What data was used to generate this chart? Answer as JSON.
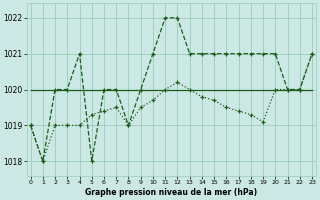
{
  "title": "Graphe pression niveau de la mer (hPa)",
  "bg_color": "#cce8e4",
  "line_color": "#1a5c1a",
  "grid_color": "#99ccbb",
  "xlim": [
    -0.3,
    23.3
  ],
  "ylim": [
    1017.6,
    1022.4
  ],
  "yticks": [
    1018,
    1019,
    1020,
    1021,
    1022
  ],
  "xticks": [
    0,
    1,
    2,
    3,
    4,
    5,
    6,
    7,
    8,
    9,
    10,
    11,
    12,
    13,
    14,
    15,
    16,
    17,
    18,
    19,
    20,
    21,
    22,
    23
  ],
  "series": [
    {
      "x": [
        0,
        1,
        2,
        3,
        4,
        5,
        6,
        7,
        8,
        9,
        10,
        11,
        12,
        13,
        14,
        15,
        16,
        17,
        18,
        19,
        20,
        21,
        22,
        23
      ],
      "y": [
        1019,
        1018,
        1020,
        1020,
        1021,
        1018,
        1020,
        1020,
        1019,
        1020,
        1021,
        1022,
        1022,
        1021,
        1021,
        1021,
        1021,
        1021,
        1021,
        1021,
        1021,
        1020,
        1020,
        1021
      ],
      "style": "--",
      "marker": "+"
    },
    {
      "x": [
        0,
        1,
        2,
        3,
        4,
        5,
        6,
        7,
        8,
        9,
        10,
        11,
        12,
        13,
        14,
        15,
        16,
        17,
        18,
        19,
        20,
        21,
        22,
        23
      ],
      "y": [
        1020,
        1020,
        1020,
        1020,
        1020,
        1020,
        1020,
        1020,
        1020,
        1020,
        1020,
        1020,
        1020,
        1020,
        1020,
        1020,
        1020,
        1020,
        1020,
        1020,
        1020,
        1020,
        1020,
        1020
      ],
      "style": "-",
      "marker": null
    },
    {
      "x": [
        0,
        1,
        2,
        3,
        4,
        5,
        6,
        7,
        8,
        9,
        10,
        11,
        12,
        13,
        14,
        15,
        16,
        17,
        18,
        19,
        20,
        21,
        22,
        23
      ],
      "y": [
        1019,
        1018,
        1019,
        1019,
        1019,
        1019.3,
        1019.4,
        1019.5,
        1019.0,
        1019.5,
        1019.7,
        1020.0,
        1020.2,
        1020.0,
        1019.8,
        1019.7,
        1019.5,
        1019.4,
        1019.3,
        1019.1,
        1020.0,
        1020.0,
        1020.0,
        1021.0
      ],
      "style": "-",
      "marker": "+"
    }
  ]
}
